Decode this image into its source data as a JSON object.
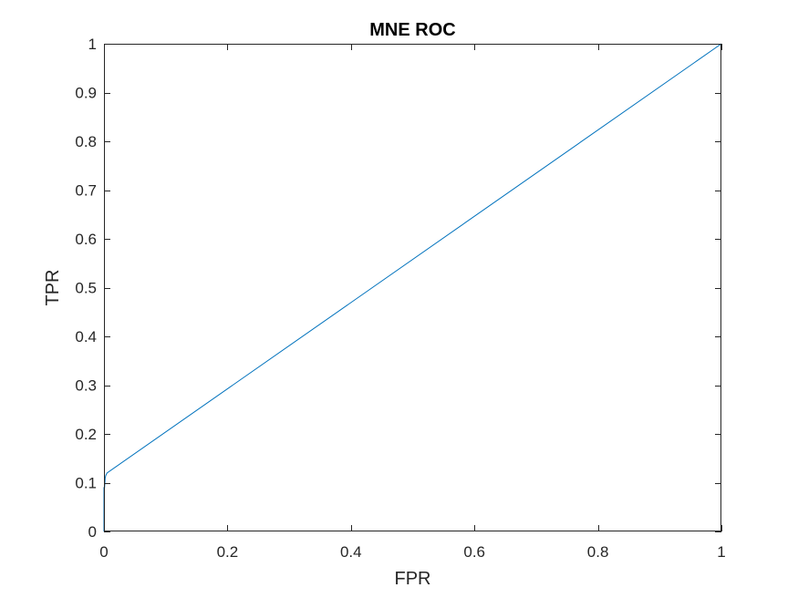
{
  "chart_data": {
    "type": "line",
    "title": "MNE ROC",
    "xlabel": "FPR",
    "ylabel": "TPR",
    "xlim": [
      0,
      1
    ],
    "ylim": [
      0,
      1
    ],
    "xticks": [
      0,
      0.2,
      0.4,
      0.6,
      0.8,
      1
    ],
    "yticks": [
      0,
      0.1,
      0.2,
      0.3,
      0.4,
      0.5,
      0.6,
      0.7,
      0.8,
      0.9,
      1
    ],
    "xtick_labels": [
      "0",
      "0.2",
      "0.4",
      "0.6",
      "0.8",
      "1"
    ],
    "ytick_labels": [
      "0",
      "0.1",
      "0.2",
      "0.3",
      "0.4",
      "0.5",
      "0.6",
      "0.7",
      "0.8",
      "0.9",
      "1"
    ],
    "grid": false,
    "series": [
      {
        "color": "#0072bd",
        "x": [
          0,
          0,
          0.001,
          0.002,
          0.003,
          0.005,
          1
        ],
        "y": [
          0,
          0.09,
          0.09,
          0.11,
          0.115,
          0.12,
          1
        ]
      }
    ]
  }
}
